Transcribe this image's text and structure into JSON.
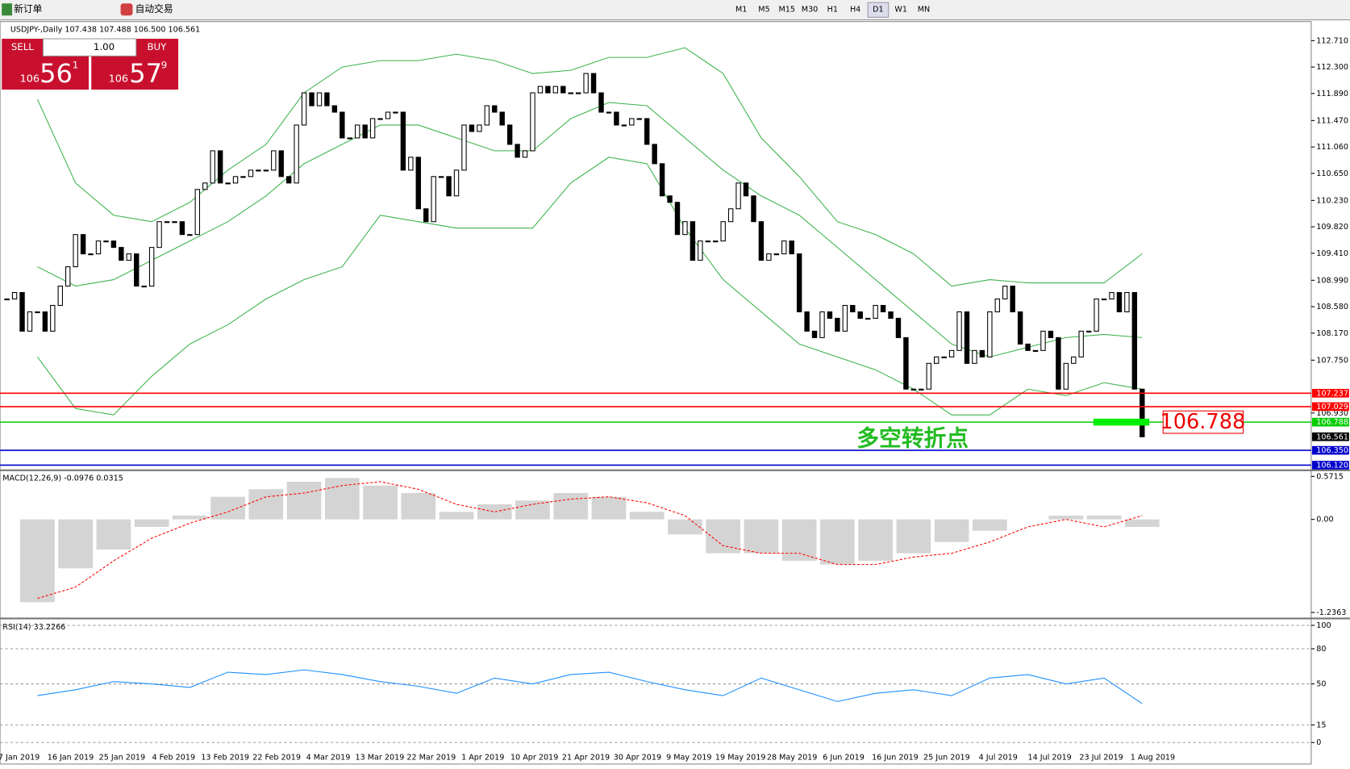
{
  "toolbar": {
    "new_order": "新订单",
    "auto_trading": "自动交易",
    "timeframes": [
      "M1",
      "M5",
      "M15",
      "M30",
      "H1",
      "H4",
      "D1",
      "W1",
      "MN"
    ]
  },
  "trade_panel": {
    "sell": "SELL",
    "lots": "1.00",
    "buy": "BUY",
    "bid": {
      "big": "106",
      "main": "56",
      "small": "1"
    },
    "ask": {
      "big": "106",
      "main": "57",
      "small": "9"
    }
  },
  "chart_data": [
    {
      "type": "candlestick",
      "title": "USDJPY-,Daily 107.438 107.488 106.500 106.561",
      "close": [
        108.7,
        108.8,
        108.2,
        108.5,
        108.5,
        108.2,
        108.6,
        108.9,
        109.2,
        109.7,
        109.4,
        109.4,
        109.6,
        109.6,
        109.5,
        109.3,
        109.4,
        108.9,
        108.9,
        109.5,
        109.9,
        109.9,
        109.9,
        109.7,
        109.7,
        110.4,
        110.5,
        111.0,
        110.5,
        110.5,
        110.6,
        110.6,
        110.7,
        110.7,
        110.7,
        111.0,
        110.6,
        110.5,
        111.4,
        111.9,
        111.7,
        111.9,
        111.7,
        111.6,
        111.2,
        111.2,
        111.4,
        111.2,
        111.5,
        111.5,
        111.6,
        111.6,
        110.7,
        110.9,
        110.1,
        109.9,
        110.6,
        110.6,
        110.3,
        110.7,
        111.4,
        111.3,
        111.4,
        111.7,
        111.6,
        111.4,
        111.1,
        110.9,
        111.0,
        111.9,
        112.0,
        111.9,
        112.0,
        111.9,
        111.9,
        111.9,
        112.2,
        111.9,
        111.6,
        111.6,
        111.4,
        111.4,
        111.5,
        111.5,
        111.1,
        110.8,
        110.3,
        110.2,
        109.7,
        109.9,
        109.3,
        109.6,
        109.6,
        109.6,
        109.9,
        110.1,
        110.5,
        110.3,
        109.9,
        109.3,
        109.4,
        109.4,
        109.6,
        109.4,
        108.5,
        108.2,
        108.1,
        108.5,
        108.4,
        108.2,
        108.6,
        108.5,
        108.4,
        108.4,
        108.6,
        108.5,
        108.4,
        108.1,
        107.3,
        107.3,
        107.3,
        107.7,
        107.8,
        107.8,
        107.9,
        108.5,
        107.7,
        107.9,
        107.8,
        108.5,
        108.7,
        108.9,
        108.5,
        108.0,
        107.9,
        107.9,
        108.2,
        108.1,
        107.3,
        107.7,
        107.8,
        108.2,
        108.2,
        108.7,
        108.7,
        108.8,
        108.5,
        108.8,
        107.3,
        106.561
      ],
      "up_color": "#ffffff",
      "down_color": "#000000",
      "series": [
        {
          "color": "#3cb44b",
          "values": [
            111.8,
            110.5,
            110.0,
            109.9,
            110.2,
            110.7,
            111.1,
            111.9,
            112.3,
            112.4,
            112.4,
            112.5,
            112.4,
            112.2,
            112.25,
            112.45,
            112.45,
            112.6,
            112.2,
            111.2,
            110.6,
            109.9,
            109.7,
            109.4,
            108.9,
            109.0,
            108.95,
            108.95,
            108.95,
            109.4
          ]
        },
        {
          "color": "#3cb44b",
          "values": [
            109.2,
            108.9,
            109.0,
            109.3,
            109.6,
            109.9,
            110.3,
            110.8,
            111.1,
            111.4,
            111.4,
            111.2,
            111.0,
            111.0,
            111.5,
            111.75,
            111.7,
            111.2,
            110.7,
            110.3,
            110.0,
            109.5,
            109.0,
            108.5,
            108.0,
            107.8,
            107.95,
            108.1,
            108.15,
            108.1
          ]
        },
        {
          "color": "#3cb44b",
          "values": [
            107.8,
            107.0,
            106.9,
            107.5,
            108.0,
            108.3,
            108.7,
            109.0,
            109.2,
            110.0,
            109.9,
            109.8,
            109.8,
            109.8,
            110.5,
            110.9,
            110.8,
            109.8,
            109.0,
            108.5,
            108.0,
            107.8,
            107.6,
            107.3,
            106.9,
            106.9,
            107.3,
            107.2,
            107.4,
            107.3
          ]
        }
      ],
      "ylim": [
        106.04,
        112.98
      ],
      "yticks": [
        {
          "value": 112.71,
          "label": "112.710"
        },
        {
          "value": 112.3,
          "label": "112.300"
        },
        {
          "value": 111.89,
          "label": "111.890"
        },
        {
          "value": 111.47,
          "label": "111.470"
        },
        {
          "value": 111.06,
          "label": "111.060"
        },
        {
          "value": 110.65,
          "label": "110.650"
        },
        {
          "value": 110.23,
          "label": "110.230"
        },
        {
          "value": 109.82,
          "label": "109.820"
        },
        {
          "value": 109.41,
          "label": "109.410"
        },
        {
          "value": 108.99,
          "label": "108.990"
        },
        {
          "value": 108.58,
          "label": "108.580"
        },
        {
          "value": 108.17,
          "label": "108.170"
        },
        {
          "value": 107.75,
          "label": "107.750"
        },
        {
          "value": 106.93,
          "label": "106.930"
        }
      ],
      "levels": [
        {
          "value": 107.237,
          "label": "107.237",
          "color": "#ff0000"
        },
        {
          "value": 107.029,
          "label": "107.029",
          "color": "#ff0000"
        },
        {
          "value": 106.788,
          "label": "106.788",
          "color": "#00cc00"
        },
        {
          "value": 106.35,
          "label": "106.350",
          "color": "#0000cc"
        },
        {
          "value": 106.12,
          "label": "106.120",
          "color": "#0000cc"
        }
      ],
      "current": {
        "value": 106.561,
        "label": "106.561"
      },
      "annotation": "多空转折点",
      "date_labels": [
        "7 Jan 2019",
        "16 Jan 2019",
        "25 Jan 2019",
        "4 Feb 2019",
        "13 Feb 2019",
        "22 Feb 2019",
        "4 Mar 2019",
        "13 Mar 2019",
        "22 Mar 2019",
        "1 Apr 2019",
        "10 Apr 2019",
        "21 Apr 2019",
        "30 Apr 2019",
        "9 May 2019",
        "19 May 2019",
        "28 May 2019",
        "6 Jun 2019",
        "16 Jun 2019",
        "25 Jun 2019",
        "4 Jul 2019",
        "14 Jul 2019",
        "23 Jul 2019",
        "1 Aug 2019"
      ]
    },
    {
      "type": "macd",
      "title": "MACD(12,26,9) -0.0976 0.0315",
      "series": [
        {
          "color": "#b8b8b8",
          "values": [
            -1.1,
            -0.65,
            -0.4,
            -0.1,
            0.05,
            0.3,
            0.4,
            0.5,
            0.55,
            0.45,
            0.35,
            0.1,
            0.2,
            0.25,
            0.35,
            0.3,
            0.1,
            -0.2,
            -0.45,
            -0.45,
            -0.55,
            -0.6,
            -0.55,
            -0.45,
            -0.3,
            -0.15,
            0.0,
            0.05,
            0.05,
            -0.1
          ]
        },
        {
          "color": "#ff0000",
          "values": [
            -1.05,
            -0.9,
            -0.55,
            -0.25,
            -0.05,
            0.1,
            0.3,
            0.35,
            0.45,
            0.5,
            0.4,
            0.2,
            0.1,
            0.2,
            0.27,
            0.3,
            0.22,
            0.05,
            -0.35,
            -0.45,
            -0.45,
            -0.6,
            -0.6,
            -0.5,
            -0.45,
            -0.3,
            -0.1,
            0.0,
            -0.1,
            0.05
          ]
        }
      ],
      "ylim": [
        -1.2935,
        0.629
      ],
      "yticks": [
        0.5715,
        {
          "value": 0,
          "label": "0.00"
        },
        -1.2363
      ]
    },
    {
      "type": "rsi",
      "title": "RSI(14) 33.2266",
      "color": "#1e90ff",
      "values": [
        40,
        45,
        52,
        50,
        47,
        60,
        58,
        62,
        58,
        52,
        48,
        42,
        55,
        50,
        58,
        60,
        52,
        45,
        40,
        55,
        45,
        35,
        42,
        45,
        40,
        55,
        58,
        50,
        55,
        33.2266
      ],
      "ylim": [
        -5.9,
        104.4
      ],
      "yticks": [
        100,
        80,
        50,
        15,
        0
      ]
    }
  ]
}
